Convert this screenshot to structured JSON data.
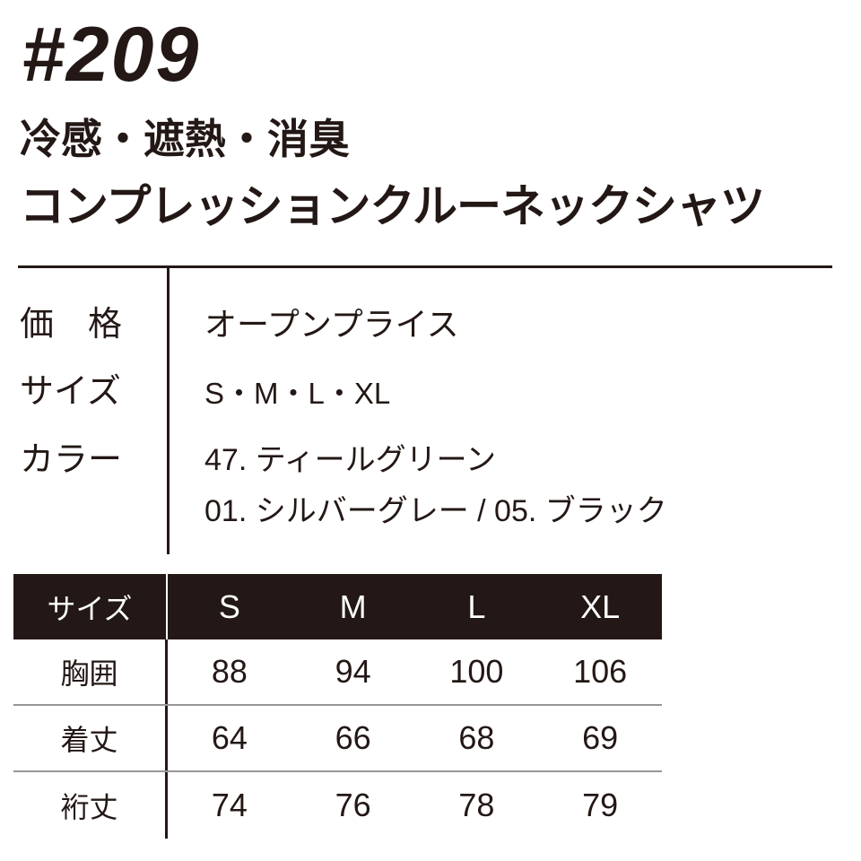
{
  "product": {
    "number": "#209",
    "features": "冷感・遮熱・消臭",
    "name": "コンプレッションクルーネックシャツ"
  },
  "info": [
    {
      "label": "価　格",
      "values": [
        "オープンプライス"
      ]
    },
    {
      "label": "サイズ",
      "values": [
        "S・M・L・XL"
      ]
    },
    {
      "label": "カラー",
      "values": [
        "47. ティールグリーン",
        "01. シルバーグレー / 05. ブラック"
      ]
    }
  ],
  "size_table": {
    "header": [
      "サイズ",
      "S",
      "M",
      "L",
      "XL"
    ],
    "rows": [
      [
        "胸囲",
        "88",
        "94",
        "100",
        "106"
      ],
      [
        "着丈",
        "64",
        "66",
        "68",
        "69"
      ],
      [
        "裄丈",
        "74",
        "76",
        "78",
        "79"
      ]
    ]
  },
  "colors": {
    "text": "#231815",
    "header_bg": "#231815"
  }
}
